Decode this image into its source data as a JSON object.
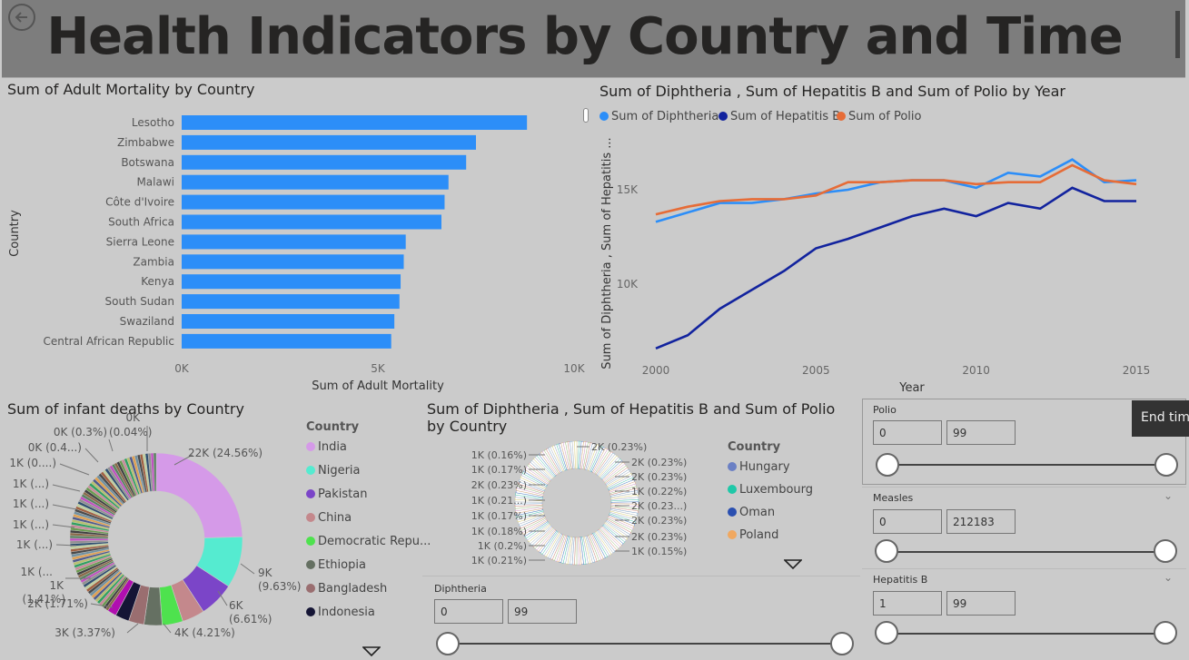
{
  "header": {
    "title": "Health Indicators by Country and Time",
    "back_icon": "back-arrow-icon"
  },
  "chart_data": [
    {
      "id": "adult_mortality",
      "type": "bar",
      "title": "Sum of Adult Mortality by Country",
      "xlabel": "Sum of Adult Mortality",
      "ylabel": "Country",
      "categories": [
        "Lesotho",
        "Zimbabwe",
        "Botswana",
        "Malawi",
        "Côte d'Ivoire",
        "South Africa",
        "Sierra Leone",
        "Zambia",
        "Kenya",
        "South Sudan",
        "Swaziland",
        "Central African Republic"
      ],
      "values": [
        8800,
        7500,
        7250,
        6800,
        6700,
        6620,
        5710,
        5660,
        5580,
        5550,
        5420,
        5340
      ],
      "xlim": [
        0,
        10000
      ],
      "xticks": [
        "0K",
        "5K",
        "10K"
      ],
      "color": "#2c8ef8"
    },
    {
      "id": "vaccines_by_year",
      "type": "line",
      "title": "Sum of Diphtheria , Sum of Hepatitis B and Sum of Polio by Year",
      "xlabel": "Year",
      "ylabel": "Sum of Diphtheria , Sum of Hepatitis ...",
      "x": [
        2000,
        2001,
        2002,
        2003,
        2004,
        2005,
        2006,
        2007,
        2008,
        2009,
        2010,
        2011,
        2012,
        2013,
        2014,
        2015
      ],
      "xticks": [
        "2000",
        "2005",
        "2010",
        "2015"
      ],
      "yticks": [
        "10K",
        "15K"
      ],
      "ylim": [
        6300,
        17500
      ],
      "series": [
        {
          "name": "Sum of Diphtheria",
          "color": "#2c8ef8",
          "values": [
            13300,
            13800,
            14300,
            14300,
            14500,
            14800,
            15000,
            15400,
            15500,
            15500,
            15100,
            15900,
            15700,
            16600,
            15400,
            15500
          ]
        },
        {
          "name": "Sum of Hepatitis B",
          "color": "#12239e",
          "values": [
            6600,
            7300,
            8700,
            9700,
            10700,
            11900,
            12400,
            13000,
            13600,
            14000,
            13600,
            14300,
            14000,
            15100,
            14400,
            14400
          ]
        },
        {
          "name": "Sum of Polio",
          "color": "#e66c37",
          "values": [
            13700,
            14100,
            14400,
            14500,
            14500,
            14700,
            15400,
            15400,
            15500,
            15500,
            15300,
            15400,
            15400,
            16300,
            15500,
            15300
          ]
        }
      ]
    },
    {
      "id": "infant_deaths",
      "type": "pie",
      "title": "Sum of infant deaths by Country",
      "legend_title": "Country",
      "legend": [
        {
          "name": "India",
          "color": "#d59ae8"
        },
        {
          "name": "Nigeria",
          "color": "#55ebd0"
        },
        {
          "name": "Pakistan",
          "color": "#7b45c8"
        },
        {
          "name": "China",
          "color": "#c4888c"
        },
        {
          "name": "Democratic Repu...",
          "color": "#4ee24e"
        },
        {
          "name": "Ethiopia",
          "color": "#657062"
        },
        {
          "name": "Bangladesh",
          "color": "#9a6e70"
        },
        {
          "name": "Indonesia",
          "color": "#151535"
        }
      ],
      "slices": [
        {
          "value": 24.56,
          "color": "#d59ae8"
        },
        {
          "value": 9.63,
          "color": "#55ebd0"
        },
        {
          "value": 6.61,
          "color": "#7b45c8"
        },
        {
          "value": 4.21,
          "color": "#c4888c"
        },
        {
          "value": 3.9,
          "color": "#4ee24e"
        },
        {
          "value": 3.37,
          "color": "#657062"
        },
        {
          "value": 2.9,
          "color": "#9a6e70"
        },
        {
          "value": 2.6,
          "color": "#151535"
        },
        {
          "value": 1.71,
          "color": "#b00fb0"
        }
      ],
      "remainder_colors": [
        "#8a6a4a",
        "#404040",
        "#6a9a50",
        "#c88a9a",
        "#30a060",
        "#b8c070",
        "#505a8a",
        "#e0a050",
        "#7090a0",
        "#4a4a4a",
        "#a06040",
        "#c0d0a0",
        "#305070",
        "#909090",
        "#c050c0",
        "#5a8060"
      ],
      "labels": [
        "22K (24.56%)",
        "9K (9.63%)",
        "6K (6.61%)",
        "4K (4.21%)",
        "3K (3.37%)",
        "2K (1.71%)",
        "1K (1.41%)",
        "1K (...",
        "1K (...)",
        "1K (...)",
        "1K (...)",
        "1K (...)",
        "1K (0....)",
        "0K (0.4...)",
        "0K (0.3%)",
        "(0.04%)",
        "0K"
      ]
    },
    {
      "id": "vaccines_by_country",
      "type": "pie",
      "title": "Sum of Diphtheria , Sum of Hepatitis B and Sum of Polio by Country",
      "legend_title": "Country",
      "legend": [
        {
          "name": "Hungary",
          "color": "#6b80c4"
        },
        {
          "name": "Luxembourg",
          "color": "#1fc8a8"
        },
        {
          "name": "Oman",
          "color": "#2a4fb0"
        },
        {
          "name": "Poland",
          "color": "#f0a860"
        }
      ],
      "labels_left": [
        "1K (0.16%)",
        "1K (0.17%)",
        "2K (0.23%)",
        "1K (0.21...)",
        "1K (0.17%)",
        "1K (0.18%)",
        "1K (0.2%)",
        "1K (0.21%)"
      ],
      "labels_right": [
        "2K (0.23%)",
        "2K (0.23%)",
        "2K (0.23%)",
        "1K (0.22%)",
        "2K (0.23...)",
        "2K (0.23%)",
        "2K (0.23%)",
        "1K (0.15%)"
      ]
    }
  ],
  "slicers": [
    {
      "label": "Polio",
      "min": "0",
      "max": "99",
      "lo": 0,
      "hi": 1
    },
    {
      "label": "Measles",
      "min": "0",
      "max": "212183",
      "lo": 0,
      "hi": 1
    },
    {
      "label": "Hepatitis B",
      "min": "1",
      "max": "99",
      "lo": 0,
      "hi": 1
    },
    {
      "label": "Diphtheria",
      "min": "0",
      "max": "99",
      "lo": 0,
      "hi": 1
    }
  ],
  "tooltip": {
    "text": "End time"
  }
}
